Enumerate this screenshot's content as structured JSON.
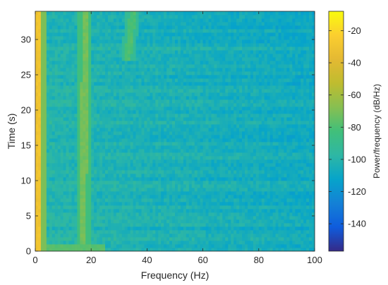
{
  "chart_data": {
    "type": "heatmap",
    "title": "",
    "xlabel": "Frequency (Hz)",
    "ylabel": "Time (s)",
    "xlim": [
      0,
      100
    ],
    "ylim": [
      0,
      34
    ],
    "xticks": [
      0,
      20,
      40,
      60,
      80,
      100
    ],
    "yticks": [
      0,
      5,
      10,
      15,
      20,
      25,
      30
    ],
    "colorbar": {
      "label": "Power/frequency (dB/Hz)",
      "range": [
        -157,
        -8
      ],
      "ticks": [
        -20,
        -40,
        -60,
        -80,
        -100,
        -120,
        -140
      ],
      "colormap": "parula"
    },
    "grid": false,
    "features": [
      {
        "name": "DC band",
        "frequency_hz": [
          0,
          2
        ],
        "level_db": -30
      },
      {
        "name": "harmonic 1",
        "frequency_hz_start": 17,
        "frequency_hz_end": 18,
        "time_s": [
          1,
          34
        ],
        "level_db": -72
      },
      {
        "name": "harmonic 2",
        "frequency_hz_start": 33,
        "frequency_hz_end": 35,
        "time_s": [
          27,
          34
        ],
        "level_db": -80
      }
    ],
    "background_level_db": -100
  }
}
